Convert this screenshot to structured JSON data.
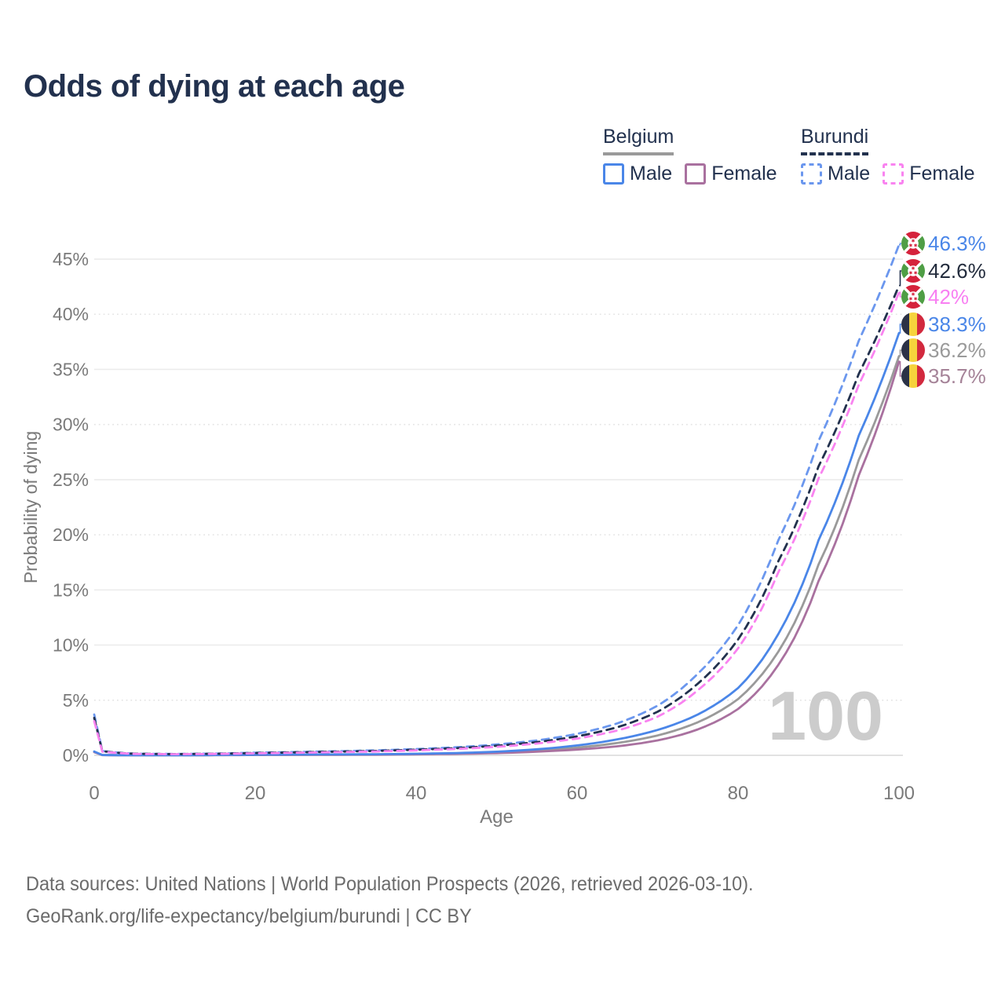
{
  "header": {
    "title": "Odds of dying at each age"
  },
  "legend": {
    "groups": [
      {
        "id": "belgium",
        "label": "Belgium",
        "line_style": "solid",
        "underline_color": "#9a9a9a",
        "items": [
          {
            "label": "Male",
            "color": "#4a86e8"
          },
          {
            "label": "Female",
            "color": "#a9719f"
          }
        ]
      },
      {
        "id": "burundi",
        "label": "Burundi",
        "line_style": "dashed",
        "underline_color": "#22314e",
        "items": [
          {
            "label": "Male",
            "color": "#6b97ee"
          },
          {
            "label": "Female",
            "color": "#f983f0"
          }
        ]
      }
    ]
  },
  "chart_data": {
    "type": "line",
    "title": "Odds of dying at each age",
    "xlabel": "Age",
    "ylabel": "Probability of dying",
    "xlim": [
      0,
      100
    ],
    "ylim": [
      0,
      47
    ],
    "grid": true,
    "legend_position": "top-right",
    "watermark": "100",
    "x_ticks": [
      0,
      20,
      40,
      60,
      80,
      100
    ],
    "y_ticks": [
      {
        "value": 0,
        "label": "0%",
        "grid": "solid"
      },
      {
        "value": 5,
        "label": "5%",
        "grid": "dotted"
      },
      {
        "value": 10,
        "label": "10%",
        "grid": "solid"
      },
      {
        "value": 15,
        "label": "15%",
        "grid": "solid"
      },
      {
        "value": 20,
        "label": "20%",
        "grid": "dotted"
      },
      {
        "value": 25,
        "label": "25%",
        "grid": "solid"
      },
      {
        "value": 30,
        "label": "30%",
        "grid": "dotted"
      },
      {
        "value": 35,
        "label": "35%",
        "grid": "solid"
      },
      {
        "value": 40,
        "label": "40%",
        "grid": "dotted"
      },
      {
        "value": 45,
        "label": "45%",
        "grid": "solid"
      }
    ],
    "ages": [
      0,
      1,
      5,
      10,
      15,
      20,
      25,
      30,
      35,
      40,
      45,
      50,
      55,
      60,
      65,
      70,
      75,
      80,
      85,
      90,
      95,
      100
    ],
    "series": [
      {
        "id": "burundi-male",
        "country": "Burundi",
        "sex": "Male",
        "color": "#6b97ee",
        "dashed": true,
        "end_value": 46.3,
        "end_label": "46.3%",
        "label_color": "#4a86e8",
        "flag": "burundi",
        "label_slot": 0,
        "values": [
          3.7,
          0.4,
          0.15,
          0.12,
          0.16,
          0.24,
          0.3,
          0.37,
          0.45,
          0.57,
          0.73,
          0.98,
          1.35,
          1.95,
          2.9,
          4.5,
          7.4,
          11.8,
          19.5,
          28.5,
          37.6,
          46.3
        ]
      },
      {
        "id": "burundi-total",
        "country": "Burundi",
        "sex": "Both",
        "color": "#22314e",
        "dashed": true,
        "end_value": 42.6,
        "end_label": "42.6%",
        "label_color": "#232c3d",
        "flag": "burundi",
        "label_slot": 1,
        "values": [
          3.4,
          0.37,
          0.14,
          0.11,
          0.14,
          0.21,
          0.27,
          0.33,
          0.4,
          0.51,
          0.65,
          0.87,
          1.2,
          1.72,
          2.55,
          3.95,
          6.5,
          10.5,
          17.6,
          26.2,
          34.6,
          42.6
        ]
      },
      {
        "id": "burundi-female",
        "country": "Burundi",
        "sex": "Female",
        "color": "#f983f0",
        "dashed": true,
        "end_value": 42.0,
        "end_label": "42%",
        "label_color": "#f87ff2",
        "flag": "burundi",
        "label_slot": 2,
        "values": [
          3.1,
          0.33,
          0.13,
          0.1,
          0.13,
          0.18,
          0.23,
          0.29,
          0.35,
          0.45,
          0.58,
          0.77,
          1.07,
          1.52,
          2.25,
          3.5,
          5.9,
          9.7,
          16.6,
          25.1,
          33.6,
          42.0
        ]
      },
      {
        "id": "belgium-male",
        "country": "Belgium",
        "sex": "Male",
        "color": "#4a86e8",
        "dashed": false,
        "end_value": 38.3,
        "end_label": "38.3%",
        "label_color": "#4a86e8",
        "flag": "belgium",
        "label_slot": 3,
        "values": [
          0.35,
          0.03,
          0.01,
          0.01,
          0.03,
          0.06,
          0.07,
          0.08,
          0.1,
          0.14,
          0.21,
          0.33,
          0.55,
          0.9,
          1.45,
          2.3,
          3.7,
          6.1,
          11.0,
          19.5,
          29.0,
          38.3
        ]
      },
      {
        "id": "belgium-total",
        "country": "Belgium",
        "sex": "Both",
        "color": "#9a9a9a",
        "dashed": false,
        "end_value": 36.2,
        "end_label": "36.2%",
        "label_color": "#9a9a9a",
        "flag": "belgium",
        "label_slot": 4,
        "values": [
          0.32,
          0.025,
          0.01,
          0.01,
          0.02,
          0.04,
          0.05,
          0.06,
          0.08,
          0.11,
          0.17,
          0.26,
          0.43,
          0.7,
          1.12,
          1.8,
          3.0,
          5.1,
          9.4,
          17.3,
          26.8,
          36.2
        ]
      },
      {
        "id": "belgium-female",
        "country": "Belgium",
        "sex": "Female",
        "color": "#a9719f",
        "dashed": false,
        "end_value": 35.7,
        "end_label": "35.7%",
        "label_color": "#a58398",
        "flag": "belgium",
        "label_slot": 5,
        "values": [
          0.29,
          0.022,
          0.009,
          0.009,
          0.018,
          0.03,
          0.04,
          0.05,
          0.06,
          0.09,
          0.13,
          0.2,
          0.33,
          0.52,
          0.82,
          1.35,
          2.35,
          4.2,
          8.2,
          15.8,
          25.4,
          35.7
        ]
      }
    ],
    "draw_order": [
      "belgium-total",
      "belgium-female",
      "belgium-male",
      "burundi-male",
      "burundi-total",
      "burundi-female"
    ]
  },
  "footer": {
    "line1": "Data sources: United Nations | World Population Prospects (2026, retrieved 2026-03-10).",
    "line2": "GeoRank.org/life-expectancy/belgium/burundi | CC BY"
  }
}
